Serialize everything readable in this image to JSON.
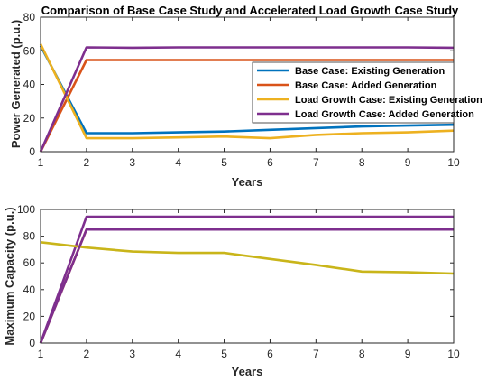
{
  "chart_data": [
    {
      "type": "line",
      "title": "Comparison of Base Case Study and Accelerated Load Growth Case Study",
      "xlabel": "Years",
      "ylabel": "Power Generated (p.u.)",
      "x": [
        1,
        2,
        3,
        4,
        5,
        6,
        7,
        8,
        9,
        10
      ],
      "xlim": [
        1,
        10
      ],
      "ylim": [
        0,
        80
      ],
      "xticks": [
        "1",
        "2",
        "3",
        "4",
        "5",
        "6",
        "7",
        "8",
        "9",
        "10"
      ],
      "yticks": [
        "0",
        "20",
        "40",
        "60",
        "80"
      ],
      "grid": false,
      "legend_position": "right",
      "series": [
        {
          "name": "Base Case: Existing Generation",
          "color": "#0072BD",
          "values": [
            63,
            11,
            11,
            11.5,
            12,
            13,
            14,
            15,
            15.5,
            16
          ]
        },
        {
          "name": "Base Case: Added Generation",
          "color": "#D95319",
          "values": [
            0,
            54.5,
            54.5,
            54.5,
            54.5,
            54.5,
            54.5,
            54.5,
            54.5,
            54.5
          ]
        },
        {
          "name": "Load Growth Case: Existing Generation",
          "color": "#EDB120",
          "values": [
            64,
            8,
            8,
            8.5,
            9,
            8,
            10,
            11,
            11.5,
            12.5
          ]
        },
        {
          "name": "Load Growth Case: Added Generation",
          "color": "#7E2F8E",
          "values": [
            0,
            62,
            61.8,
            62,
            62,
            62,
            62,
            62,
            62,
            61.8
          ]
        }
      ]
    },
    {
      "type": "line",
      "xlabel": "Years",
      "ylabel": "Maximum Capacity (p.u.)",
      "x": [
        1,
        2,
        3,
        4,
        5,
        6,
        7,
        8,
        9,
        10
      ],
      "xlim": [
        1,
        10
      ],
      "ylim": [
        0,
        100
      ],
      "xticks": [
        "1",
        "2",
        "3",
        "4",
        "5",
        "6",
        "7",
        "8",
        "9",
        "10"
      ],
      "yticks": [
        "0",
        "20",
        "40",
        "60",
        "80",
        "100"
      ],
      "grid": false,
      "series": [
        {
          "color": "#D95319",
          "values": [
            0,
            85,
            85,
            85,
            85,
            85,
            85,
            85,
            85,
            85
          ]
        },
        {
          "color": "#7E2F8E",
          "values": [
            0,
            94.5,
            94.5,
            94.5,
            94.5,
            94.5,
            94.5,
            94.5,
            94.5,
            94.5
          ]
        },
        {
          "color": "#C9B51A",
          "values": [
            75.5,
            71.5,
            68.5,
            67.5,
            67.5,
            63,
            58.5,
            53.5,
            53,
            52
          ]
        },
        {
          "color": "#7E2F8E",
          "values": [
            0,
            85,
            85,
            85,
            85,
            85,
            85,
            85,
            85,
            85
          ]
        }
      ]
    }
  ]
}
